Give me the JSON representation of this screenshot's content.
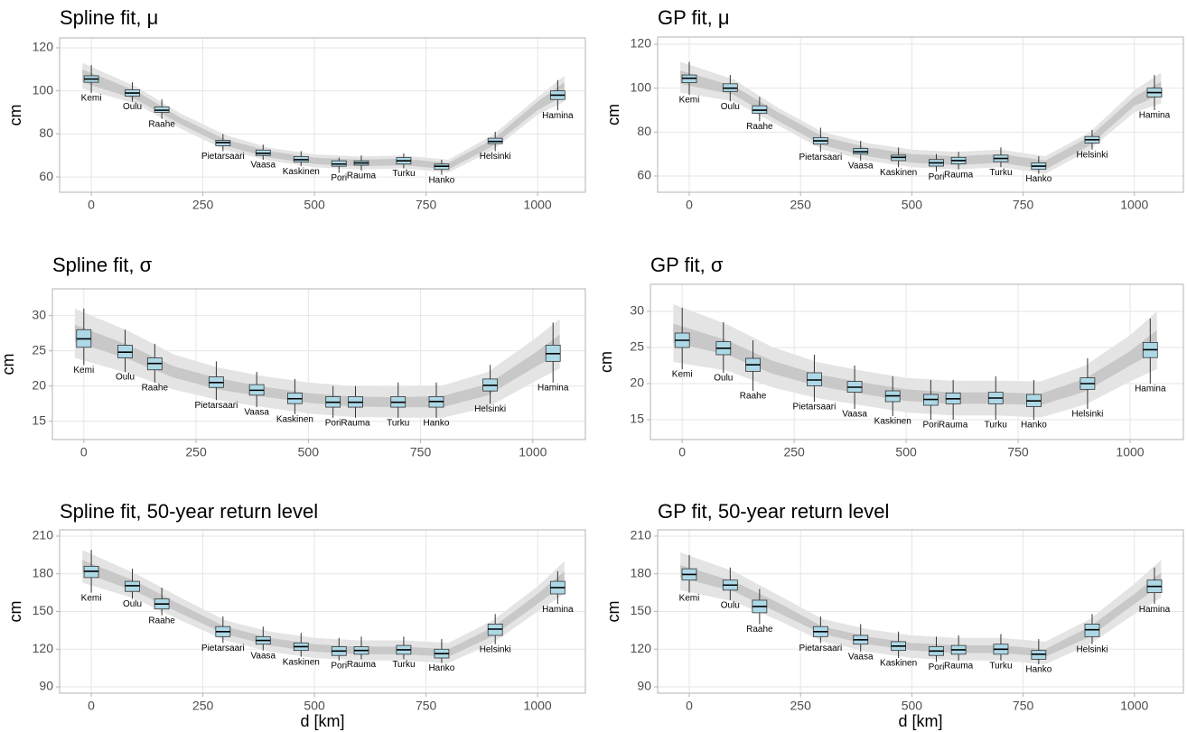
{
  "chart_data": [
    {
      "type": "box",
      "title": "Spline fit, μ",
      "ylabel": "cm",
      "categories": [
        "Kemi",
        "Oulu",
        "Raahe",
        "Pietarsaari",
        "Vaasa",
        "Kaskinen",
        "Pori",
        "Rauma",
        "Turku",
        "Hanko",
        "Helsinki",
        "Hamina"
      ],
      "x": [
        0,
        92,
        158,
        295,
        385,
        470,
        555,
        605,
        700,
        785,
        905,
        1045
      ],
      "box": {
        "min": [
          99,
          95,
          87,
          72,
          68,
          65,
          62,
          63,
          64,
          61,
          72,
          91
        ],
        "q1": [
          104,
          97.5,
          90,
          74.5,
          70,
          67,
          65,
          65.5,
          66,
          63.5,
          75.5,
          96
        ],
        "median": [
          105.5,
          99,
          91,
          76,
          71,
          68,
          66,
          66.5,
          67.5,
          65,
          76.5,
          98
        ],
        "q3": [
          107,
          100.5,
          92.5,
          77,
          72.5,
          69.5,
          67.5,
          67.5,
          69,
          66,
          78,
          100
        ],
        "max": [
          112,
          104,
          96,
          80,
          75,
          72,
          69,
          70,
          71,
          68,
          81,
          105
        ]
      },
      "outer_band": {
        "x": [
          -20,
          100,
          200,
          300,
          400,
          500,
          600,
          700,
          800,
          900,
          1000,
          1060
        ],
        "lower": [
          101,
          94,
          82.5,
          72.5,
          67.5,
          64.5,
          63.5,
          64,
          62,
          72.5,
          89,
          95
        ],
        "upper": [
          113,
          102,
          89.5,
          79.5,
          73.5,
          70.5,
          69.5,
          70,
          68,
          79.5,
          97,
          107
        ]
      },
      "inner_band": {
        "x": [
          -20,
          100,
          200,
          300,
          400,
          500,
          600,
          700,
          800,
          900,
          1000,
          1060
        ],
        "lower": [
          104,
          96,
          84.5,
          74.5,
          69,
          66,
          65,
          65.5,
          63.5,
          74.5,
          91,
          98
        ],
        "upper": [
          110,
          100,
          87.5,
          77.5,
          72,
          69,
          68,
          68.5,
          66.5,
          77.5,
          95,
          104
        ]
      },
      "xlim": [
        -71,
        1107
      ],
      "ylim": [
        52.9,
        124.6
      ],
      "xticks": [
        0,
        250,
        500,
        750,
        1000
      ],
      "yticks": [
        60,
        80,
        100,
        120
      ],
      "grid": true,
      "box_color": "#add8e6",
      "outer_band_color": "#e4e4e4",
      "inner_band_color": "#c8c8c8"
    },
    {
      "type": "box",
      "title": "GP fit, μ",
      "ylabel": "cm",
      "categories": [
        "Kemi",
        "Oulu",
        "Raahe",
        "Pietarsaari",
        "Vaasa",
        "Kaskinen",
        "Pori",
        "Rauma",
        "Turku",
        "Hanko",
        "Helsinki",
        "Hamina"
      ],
      "x": [
        0,
        92,
        158,
        295,
        385,
        470,
        555,
        605,
        700,
        785,
        905,
        1045
      ],
      "box": {
        "min": [
          97,
          94,
          85,
          71,
          67,
          64,
          62,
          63,
          64,
          61,
          72,
          90
        ],
        "q1": [
          102.5,
          98.5,
          88.5,
          74.5,
          70,
          67,
          64.5,
          65.5,
          66.5,
          63,
          75,
          96
        ],
        "median": [
          104.5,
          100,
          90,
          76,
          71,
          68.5,
          66,
          67,
          68,
          64.5,
          76.5,
          98
        ],
        "q3": [
          106,
          102,
          92,
          77.5,
          72.5,
          69.5,
          67.5,
          68.5,
          69.5,
          66,
          78,
          100
        ],
        "max": [
          112,
          106,
          96,
          82,
          76,
          73,
          70,
          71,
          73,
          69,
          81,
          106
        ]
      },
      "outer_band": {
        "x": [
          -20,
          100,
          200,
          300,
          400,
          500,
          600,
          700,
          800,
          900,
          1000,
          1060
        ],
        "lower": [
          98,
          94,
          83,
          72,
          67,
          64,
          63,
          64,
          61,
          72,
          89,
          93
        ],
        "upper": [
          112,
          104,
          91,
          80,
          75,
          72,
          71,
          72,
          69,
          80,
          99,
          107
        ]
      },
      "inner_band": {
        "x": [
          -20,
          100,
          200,
          300,
          400,
          500,
          600,
          700,
          800,
          900,
          1000,
          1060
        ],
        "lower": [
          102,
          97,
          85,
          74,
          69,
          66,
          65,
          66,
          63,
          74,
          92,
          97
        ],
        "upper": [
          108,
          101,
          89,
          78,
          73,
          70,
          69,
          70,
          67,
          78,
          96,
          103
        ]
      },
      "xlim": [
        -71,
        1110
      ],
      "ylim": [
        52.6,
        123.3
      ],
      "xticks": [
        0,
        250,
        500,
        750,
        1000
      ],
      "yticks": [
        60,
        80,
        100,
        120
      ],
      "grid": true,
      "box_color": "#add8e6",
      "outer_band_color": "#e4e4e4",
      "inner_band_color": "#c8c8c8"
    },
    {
      "type": "box",
      "title": "Spline fit, σ",
      "ylabel": "cm",
      "categories": [
        "Kemi",
        "Oulu",
        "Raahe",
        "Pietarsaari",
        "Vaasa",
        "Kaskinen",
        "Pori",
        "Rauma",
        "Turku",
        "Hanko",
        "Helsinki",
        "Hamina"
      ],
      "x": [
        0,
        92,
        158,
        295,
        385,
        470,
        555,
        605,
        700,
        785,
        905,
        1045
      ],
      "box": {
        "min": [
          23,
          22,
          20.5,
          18,
          17,
          16,
          15.5,
          15.5,
          15.5,
          15.5,
          17.5,
          20.5
        ],
        "q1": [
          25.5,
          24,
          22.3,
          19.8,
          18.7,
          17.5,
          17,
          17,
          17,
          17,
          19.3,
          23.5
        ],
        "median": [
          26.7,
          24.8,
          23.2,
          20.5,
          19.4,
          18.2,
          17.7,
          17.7,
          17.7,
          17.8,
          20.1,
          24.6
        ],
        "q3": [
          28,
          25.8,
          24,
          21.3,
          20.2,
          19,
          18.5,
          18.5,
          18.5,
          18.5,
          21,
          25.8
        ],
        "max": [
          31,
          28,
          26,
          23.5,
          22,
          21,
          20,
          20,
          20.5,
          20.5,
          23,
          29
        ]
      },
      "outer_band": {
        "x": [
          -20,
          100,
          200,
          300,
          400,
          500,
          600,
          700,
          800,
          900,
          1000,
          1060
        ],
        "lower": [
          24,
          21.8,
          19.5,
          18,
          17,
          16.1,
          15.6,
          15.5,
          15.5,
          17,
          20.5,
          22.5
        ],
        "upper": [
          31,
          27.8,
          24.5,
          22.6,
          21.4,
          20.5,
          20,
          19.9,
          20.1,
          22,
          26.5,
          29.5
        ]
      },
      "inner_band": {
        "x": [
          -20,
          100,
          200,
          300,
          400,
          500,
          600,
          700,
          800,
          900,
          1000,
          1060
        ],
        "lower": [
          26.3,
          23.8,
          21.2,
          19.5,
          18.5,
          17.6,
          17.1,
          17,
          17,
          18.7,
          22.5,
          24.7
        ],
        "upper": [
          28.7,
          25.8,
          22.8,
          21.1,
          19.9,
          19,
          18.5,
          18.4,
          18.6,
          20.3,
          24.5,
          27.3
        ]
      },
      "xlim": [
        -70,
        1117
      ],
      "ylim": [
        12.4,
        33.8
      ],
      "xticks": [
        0,
        250,
        500,
        750,
        1000
      ],
      "yticks": [
        15,
        20,
        25,
        30
      ],
      "grid": true,
      "box_color": "#add8e6",
      "outer_band_color": "#e4e4e4",
      "inner_band_color": "#c8c8c8"
    },
    {
      "type": "box",
      "title": "GP fit, σ",
      "ylabel": "cm",
      "categories": [
        "Kemi",
        "Oulu",
        "Raahe",
        "Pietarsaari",
        "Vaasa",
        "Kaskinen",
        "Pori",
        "Rauma",
        "Turku",
        "Hanko",
        "Helsinki",
        "Hamina"
      ],
      "x": [
        0,
        92,
        158,
        295,
        385,
        470,
        555,
        605,
        700,
        785,
        905,
        1045
      ],
      "box": {
        "min": [
          22,
          21.5,
          19,
          17.5,
          16.5,
          15.5,
          15,
          15,
          15,
          15,
          16.5,
          20
        ],
        "q1": [
          25,
          24,
          21.7,
          19.7,
          18.8,
          17.5,
          17,
          17.2,
          17.2,
          16.8,
          19.2,
          23.6
        ],
        "median": [
          26,
          24.9,
          22.6,
          20.5,
          19.5,
          18.3,
          17.8,
          17.9,
          18,
          17.6,
          20,
          24.7
        ],
        "q3": [
          27,
          25.8,
          23.5,
          21.5,
          20.3,
          19,
          18.5,
          18.7,
          18.8,
          18.5,
          20.8,
          25.7
        ],
        "max": [
          30.5,
          28.5,
          26,
          24,
          22.5,
          21,
          20.5,
          20.5,
          21,
          20.5,
          23.5,
          29
        ]
      },
      "outer_band": {
        "x": [
          -20,
          100,
          200,
          300,
          400,
          500,
          600,
          700,
          800,
          900,
          1000,
          1060
        ],
        "lower": [
          23,
          21.8,
          19.5,
          18,
          17,
          16,
          15.6,
          15.6,
          15.3,
          17.1,
          20.3,
          22
        ],
        "upper": [
          31,
          28.2,
          25.1,
          23,
          21.8,
          20.8,
          20.4,
          20.4,
          20.3,
          22.5,
          26.7,
          30
        ]
      },
      "inner_band": {
        "x": [
          -20,
          100,
          200,
          300,
          400,
          500,
          600,
          700,
          800,
          900,
          1000,
          1060
        ],
        "lower": [
          25.7,
          24,
          21.4,
          19.7,
          18.6,
          17.6,
          17.2,
          17.2,
          17,
          18.9,
          22.5,
          24.6
        ],
        "upper": [
          28.3,
          26,
          23.2,
          21.3,
          20.2,
          19.2,
          18.8,
          18.8,
          18.6,
          20.7,
          24.5,
          27.4
        ]
      },
      "xlim": [
        -71,
        1119
      ],
      "ylim": [
        12.25,
        33.75
      ],
      "xticks": [
        0,
        250,
        500,
        750,
        1000
      ],
      "yticks": [
        15,
        20,
        25,
        30
      ],
      "grid": true,
      "box_color": "#add8e6",
      "outer_band_color": "#e4e4e4",
      "inner_band_color": "#c8c8c8"
    },
    {
      "type": "box",
      "title": "Spline fit, 50-year return level",
      "ylabel": "cm",
      "xlabel": "d [km]",
      "categories": [
        "Kemi",
        "Oulu",
        "Raahe",
        "Pietarsaari",
        "Vaasa",
        "Kaskinen",
        "Pori",
        "Rauma",
        "Turku",
        "Hanko",
        "Helsinki",
        "Hamina"
      ],
      "x": [
        0,
        92,
        158,
        295,
        385,
        470,
        555,
        605,
        700,
        785,
        905,
        1045
      ],
      "box": {
        "min": [
          165,
          160,
          147,
          125,
          119,
          114,
          111,
          112,
          112,
          109,
          124,
          156
        ],
        "q1": [
          177,
          166,
          152,
          130,
          124,
          119,
          115,
          116,
          116,
          113,
          131,
          164
        ],
        "median": [
          182,
          170.5,
          156,
          134,
          127,
          122,
          118.5,
          119,
          119.5,
          116.5,
          136,
          169
        ],
        "q3": [
          186,
          174,
          160,
          138,
          130,
          125,
          122,
          122,
          123,
          120,
          140,
          174
        ],
        "max": [
          199,
          184,
          169,
          146,
          138,
          133,
          129,
          130,
          130,
          128,
          148,
          182
        ]
      },
      "outer_band": {
        "x": [
          -20,
          100,
          200,
          300,
          400,
          500,
          600,
          700,
          800,
          900,
          1000,
          1060
        ],
        "lower": [
          173,
          160,
          143,
          127,
          118,
          113,
          111,
          111,
          109,
          125,
          150,
          164
        ],
        "upper": [
          199,
          180,
          161,
          143,
          134,
          129,
          127,
          127,
          125,
          143,
          170,
          190
        ]
      },
      "inner_band": {
        "x": [
          -20,
          100,
          200,
          300,
          400,
          500,
          600,
          700,
          800,
          900,
          1000,
          1060
        ],
        "lower": [
          181,
          166,
          148.5,
          132,
          123,
          118,
          116,
          116,
          114,
          130.5,
          156,
          172
        ],
        "upper": [
          191,
          174,
          155.5,
          138,
          129,
          124,
          122,
          122,
          120,
          137.5,
          164,
          182
        ]
      },
      "xlim": [
        -71,
        1107
      ],
      "ylim": [
        85,
        215
      ],
      "xticks": [
        0,
        250,
        500,
        750,
        1000
      ],
      "yticks": [
        90,
        120,
        150,
        180,
        210
      ],
      "grid": true,
      "box_color": "#add8e6",
      "outer_band_color": "#e4e4e4",
      "inner_band_color": "#c8c8c8"
    },
    {
      "type": "box",
      "title": "GP fit, 50-year return level",
      "ylabel": "cm",
      "xlabel": "d [km]",
      "categories": [
        "Kemi",
        "Oulu",
        "Raahe",
        "Pietarsaari",
        "Vaasa",
        "Kaskinen",
        "Pori",
        "Rauma",
        "Turku",
        "Hanko",
        "Helsinki",
        "Hamina"
      ],
      "x": [
        0,
        92,
        158,
        295,
        385,
        470,
        555,
        605,
        700,
        785,
        905,
        1045
      ],
      "box": {
        "min": [
          165,
          159,
          140,
          125,
          118,
          113,
          110,
          111,
          111,
          108,
          124,
          156
        ],
        "q1": [
          175,
          167,
          149,
          130,
          124,
          119,
          115,
          116,
          116,
          112,
          130,
          165
        ],
        "median": [
          179.5,
          171,
          154,
          134,
          127.5,
          122.5,
          118.5,
          119.5,
          120,
          116,
          135.5,
          170
        ],
        "q3": [
          184,
          175,
          159,
          138,
          131,
          126,
          122,
          123,
          124,
          119,
          140,
          175
        ],
        "max": [
          195,
          185,
          168,
          146,
          140,
          134,
          130,
          131,
          132,
          128,
          148,
          185
        ]
      },
      "outer_band": {
        "x": [
          -20,
          100,
          200,
          300,
          400,
          500,
          600,
          700,
          800,
          900,
          1000,
          1060
        ],
        "lower": [
          167,
          158,
          143,
          126,
          118,
          113,
          111,
          111,
          108,
          124,
          148,
          161
        ],
        "upper": [
          197,
          182,
          163,
          144,
          136,
          131,
          129,
          129,
          126,
          144,
          172,
          191
        ]
      },
      "inner_band": {
        "x": [
          -20,
          100,
          200,
          300,
          400,
          500,
          600,
          700,
          800,
          900,
          1000,
          1060
        ],
        "lower": [
          177,
          166,
          149,
          132,
          124,
          119,
          117,
          117,
          114,
          130,
          156,
          171
        ],
        "upper": [
          187,
          174,
          157,
          138,
          130,
          125,
          123,
          123,
          120,
          138,
          164,
          181
        ]
      },
      "xlim": [
        -71,
        1110
      ],
      "ylim": [
        85,
        215
      ],
      "xticks": [
        0,
        250,
        500,
        750,
        1000
      ],
      "yticks": [
        90,
        120,
        150,
        180,
        210
      ],
      "grid": true,
      "box_color": "#add8e6",
      "outer_band_color": "#e4e4e4",
      "inner_band_color": "#c8c8c8"
    }
  ]
}
